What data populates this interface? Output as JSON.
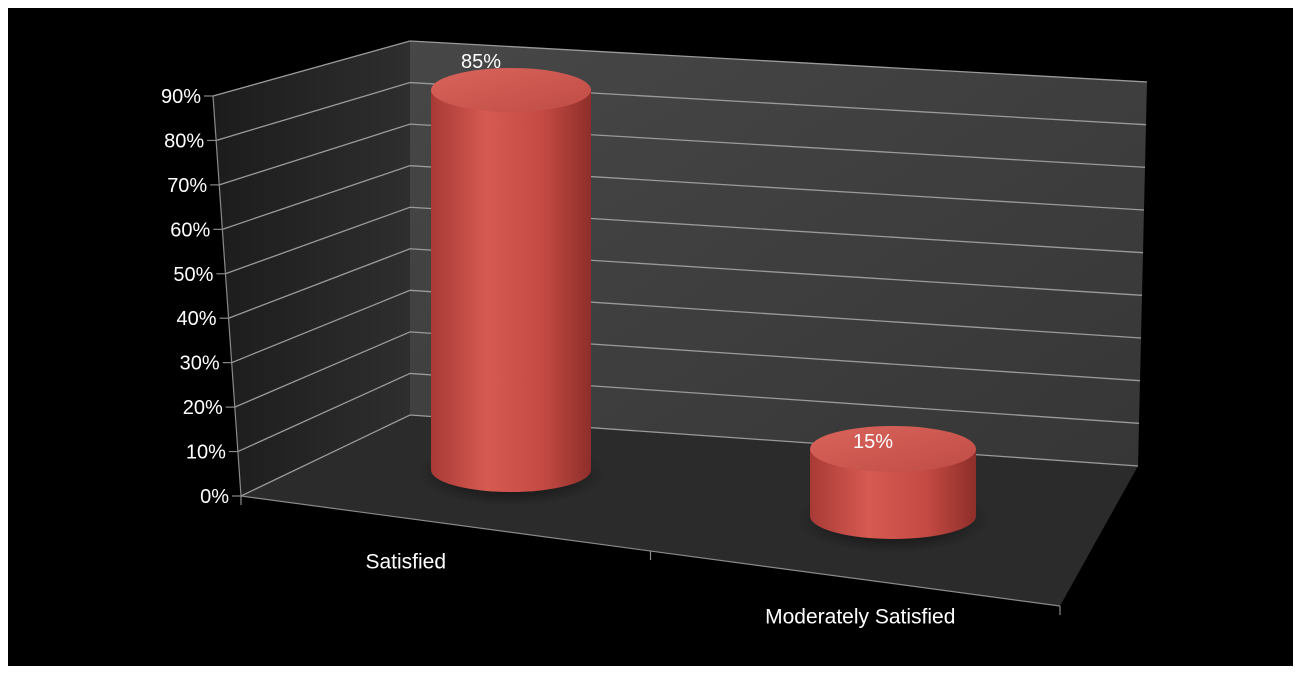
{
  "chart_data": {
    "type": "bar",
    "style": "3d-cylinder",
    "categories": [
      "Satisfied",
      "Moderately Satisfied"
    ],
    "series": [
      {
        "values": [
          85,
          15
        ],
        "color": "#c84a43"
      }
    ],
    "data_labels": [
      "85%",
      "15%"
    ],
    "ylim": [
      0,
      90
    ],
    "yticks": [
      "0%",
      "10%",
      "20%",
      "30%",
      "40%",
      "50%",
      "60%",
      "70%",
      "80%",
      "90%"
    ],
    "grid": true,
    "legend": "none",
    "background": "#000000",
    "wall_color": "#3a3a3a",
    "floor_color": "#2b2b2b"
  }
}
